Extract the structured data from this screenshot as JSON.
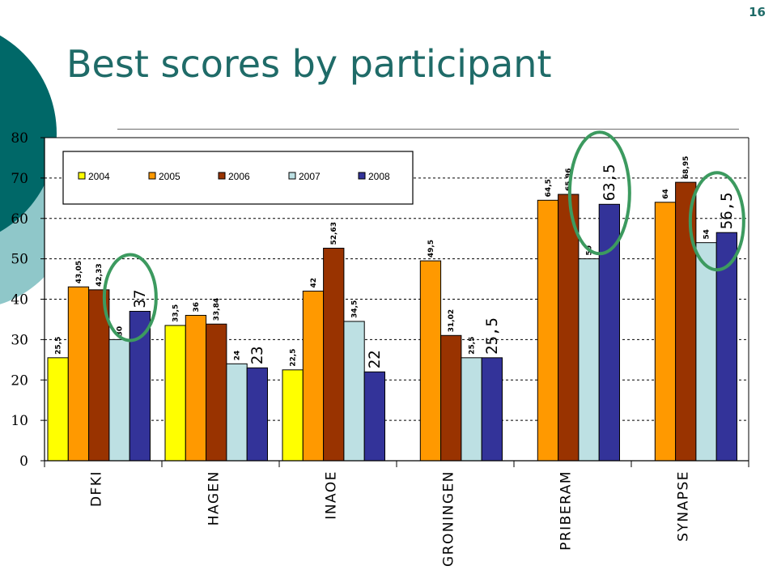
{
  "page": {
    "number": "16",
    "title": "Best scores by participant"
  },
  "colors": {
    "accent_teal": "#006868",
    "accent_light_teal": "#8fc7c9",
    "title": "#1f6b68",
    "highlight_circle": "#3c9a5f"
  },
  "chart_data": {
    "type": "bar",
    "title": "",
    "xlabel": "",
    "ylabel": "",
    "ylim": [
      0,
      80
    ],
    "yticks": [
      "0",
      "10",
      "20",
      "30",
      "40",
      "50",
      "60",
      "70",
      "80"
    ],
    "grid": true,
    "legend_position": "top-left",
    "categories": [
      "DFKI",
      "HAGEN",
      "INAOE",
      "GRONINGEN",
      "PRIBERAM",
      "SYNAPSE"
    ],
    "series": [
      {
        "name": "2004",
        "color": "#ffff00",
        "values": [
          25.5,
          33.5,
          22.5,
          null,
          null,
          null
        ],
        "labels": [
          "25,5",
          "33,5",
          "22,5",
          "",
          "",
          ""
        ]
      },
      {
        "name": "2005",
        "color": "#ff9900",
        "values": [
          43.05,
          36,
          42,
          49.5,
          64.5,
          64
        ],
        "labels": [
          "43,05",
          "36",
          "42",
          "49,5",
          "64,5",
          "64"
        ]
      },
      {
        "name": "2006",
        "color": "#993300",
        "values": [
          42.33,
          33.84,
          52.63,
          31.02,
          65.96,
          68.95
        ],
        "labels": [
          "42,33",
          "33,84",
          "52,63",
          "31,02",
          "65,96",
          "68,95"
        ]
      },
      {
        "name": "2007",
        "color": "#bde0e3",
        "values": [
          30,
          24,
          34.5,
          25.5,
          50,
          54
        ],
        "labels": [
          "30",
          "24",
          "34,5",
          "25,5",
          "50",
          "54"
        ]
      },
      {
        "name": "2008",
        "color": "#333399",
        "values": [
          37,
          23,
          22,
          25.5,
          63.5,
          56.5
        ],
        "labels": [
          "37",
          "23",
          "22",
          "25,5",
          "63,5",
          "56,5"
        ]
      }
    ]
  }
}
